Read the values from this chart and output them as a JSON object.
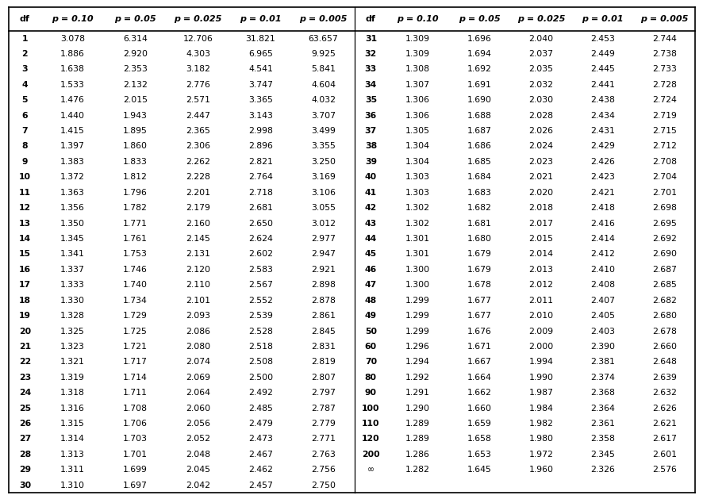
{
  "header": [
    "df",
    "p = 0.10",
    "p = 0.05",
    "p = 0.025",
    "p = 0.01",
    "p = 0.005"
  ],
  "rows_left": [
    [
      "1",
      "3.078",
      "6.314",
      "12.706",
      "31.821",
      "63.657"
    ],
    [
      "2",
      "1.886",
      "2.920",
      "4.303",
      "6.965",
      "9.925"
    ],
    [
      "3",
      "1.638",
      "2.353",
      "3.182",
      "4.541",
      "5.841"
    ],
    [
      "4",
      "1.533",
      "2.132",
      "2.776",
      "3.747",
      "4.604"
    ],
    [
      "5",
      "1.476",
      "2.015",
      "2.571",
      "3.365",
      "4.032"
    ],
    [
      "6",
      "1.440",
      "1.943",
      "2.447",
      "3.143",
      "3.707"
    ],
    [
      "7",
      "1.415",
      "1.895",
      "2.365",
      "2.998",
      "3.499"
    ],
    [
      "8",
      "1.397",
      "1.860",
      "2.306",
      "2.896",
      "3.355"
    ],
    [
      "9",
      "1.383",
      "1.833",
      "2.262",
      "2.821",
      "3.250"
    ],
    [
      "10",
      "1.372",
      "1.812",
      "2.228",
      "2.764",
      "3.169"
    ],
    [
      "11",
      "1.363",
      "1.796",
      "2.201",
      "2.718",
      "3.106"
    ],
    [
      "12",
      "1.356",
      "1.782",
      "2.179",
      "2.681",
      "3.055"
    ],
    [
      "13",
      "1.350",
      "1.771",
      "2.160",
      "2.650",
      "3.012"
    ],
    [
      "14",
      "1.345",
      "1.761",
      "2.145",
      "2.624",
      "2.977"
    ],
    [
      "15",
      "1.341",
      "1.753",
      "2.131",
      "2.602",
      "2.947"
    ],
    [
      "16",
      "1.337",
      "1.746",
      "2.120",
      "2.583",
      "2.921"
    ],
    [
      "17",
      "1.333",
      "1.740",
      "2.110",
      "2.567",
      "2.898"
    ],
    [
      "18",
      "1.330",
      "1.734",
      "2.101",
      "2.552",
      "2.878"
    ],
    [
      "19",
      "1.328",
      "1.729",
      "2.093",
      "2.539",
      "2.861"
    ],
    [
      "20",
      "1.325",
      "1.725",
      "2.086",
      "2.528",
      "2.845"
    ],
    [
      "21",
      "1.323",
      "1.721",
      "2.080",
      "2.518",
      "2.831"
    ],
    [
      "22",
      "1.321",
      "1.717",
      "2.074",
      "2.508",
      "2.819"
    ],
    [
      "23",
      "1.319",
      "1.714",
      "2.069",
      "2.500",
      "2.807"
    ],
    [
      "24",
      "1.318",
      "1.711",
      "2.064",
      "2.492",
      "2.797"
    ],
    [
      "25",
      "1.316",
      "1.708",
      "2.060",
      "2.485",
      "2.787"
    ],
    [
      "26",
      "1.315",
      "1.706",
      "2.056",
      "2.479",
      "2.779"
    ],
    [
      "27",
      "1.314",
      "1.703",
      "2.052",
      "2.473",
      "2.771"
    ],
    [
      "28",
      "1.313",
      "1.701",
      "2.048",
      "2.467",
      "2.763"
    ],
    [
      "29",
      "1.311",
      "1.699",
      "2.045",
      "2.462",
      "2.756"
    ],
    [
      "30",
      "1.310",
      "1.697",
      "2.042",
      "2.457",
      "2.750"
    ]
  ],
  "rows_right": [
    [
      "31",
      "1.309",
      "1.696",
      "2.040",
      "2.453",
      "2.744"
    ],
    [
      "32",
      "1.309",
      "1.694",
      "2.037",
      "2.449",
      "2.738"
    ],
    [
      "33",
      "1.308",
      "1.692",
      "2.035",
      "2.445",
      "2.733"
    ],
    [
      "34",
      "1.307",
      "1.691",
      "2.032",
      "2.441",
      "2.728"
    ],
    [
      "35",
      "1.306",
      "1.690",
      "2.030",
      "2.438",
      "2.724"
    ],
    [
      "36",
      "1.306",
      "1.688",
      "2.028",
      "2.434",
      "2.719"
    ],
    [
      "37",
      "1.305",
      "1.687",
      "2.026",
      "2.431",
      "2.715"
    ],
    [
      "38",
      "1.304",
      "1.686",
      "2.024",
      "2.429",
      "2.712"
    ],
    [
      "39",
      "1.304",
      "1.685",
      "2.023",
      "2.426",
      "2.708"
    ],
    [
      "40",
      "1.303",
      "1.684",
      "2.021",
      "2.423",
      "2.704"
    ],
    [
      "41",
      "1.303",
      "1.683",
      "2.020",
      "2.421",
      "2.701"
    ],
    [
      "42",
      "1.302",
      "1.682",
      "2.018",
      "2.418",
      "2.698"
    ],
    [
      "43",
      "1.302",
      "1.681",
      "2.017",
      "2.416",
      "2.695"
    ],
    [
      "44",
      "1.301",
      "1.680",
      "2.015",
      "2.414",
      "2.692"
    ],
    [
      "45",
      "1.301",
      "1.679",
      "2.014",
      "2.412",
      "2.690"
    ],
    [
      "46",
      "1.300",
      "1.679",
      "2.013",
      "2.410",
      "2.687"
    ],
    [
      "47",
      "1.300",
      "1.678",
      "2.012",
      "2.408",
      "2.685"
    ],
    [
      "48",
      "1.299",
      "1.677",
      "2.011",
      "2.407",
      "2.682"
    ],
    [
      "49",
      "1.299",
      "1.677",
      "2.010",
      "2.405",
      "2.680"
    ],
    [
      "50",
      "1.299",
      "1.676",
      "2.009",
      "2.403",
      "2.678"
    ],
    [
      "60",
      "1.296",
      "1.671",
      "2.000",
      "2.390",
      "2.660"
    ],
    [
      "70",
      "1.294",
      "1.667",
      "1.994",
      "2.381",
      "2.648"
    ],
    [
      "80",
      "1.292",
      "1.664",
      "1.990",
      "2.374",
      "2.639"
    ],
    [
      "90",
      "1.291",
      "1.662",
      "1.987",
      "2.368",
      "2.632"
    ],
    [
      "100",
      "1.290",
      "1.660",
      "1.984",
      "2.364",
      "2.626"
    ],
    [
      "110",
      "1.289",
      "1.659",
      "1.982",
      "2.361",
      "2.621"
    ],
    [
      "120",
      "1.289",
      "1.658",
      "1.980",
      "2.358",
      "2.617"
    ],
    [
      "200",
      "1.286",
      "1.653",
      "1.972",
      "2.345",
      "2.601"
    ],
    [
      "∞",
      "1.282",
      "1.645",
      "1.960",
      "2.326",
      "2.576"
    ],
    [
      "",
      "",
      "",
      "",
      "",
      ""
    ]
  ],
  "bg_color": "#ffffff",
  "text_color": "#000000",
  "border_color": "#000000",
  "font_size": 7.8,
  "header_font_size": 8.0
}
